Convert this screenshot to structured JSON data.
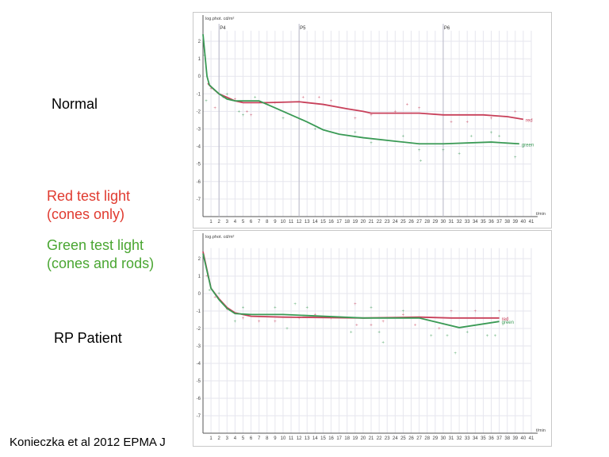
{
  "slide": {
    "label_normal": "Normal",
    "label_red_1": "Red test light",
    "label_red_2": "(cones only)",
    "label_green_1": "Green test light",
    "label_green_2": "(cones and rods)",
    "label_patient": "RP Patient",
    "citation": "Konieczka et al 2012 EPMA J",
    "colors": {
      "red_text": "#e03a2f",
      "green_text": "#4aa632",
      "red_series": "#c8405a",
      "green_series": "#3a9a55"
    }
  },
  "chart_data": [
    {
      "type": "line",
      "ylabel": "log.phot. cd/m²",
      "xlabel": "t/min",
      "xlim": [
        0,
        41
      ],
      "ylim": [
        -8,
        2.6
      ],
      "xticks": [
        1,
        2,
        3,
        4,
        5,
        6,
        7,
        8,
        9,
        10,
        11,
        12,
        13,
        14,
        15,
        16,
        17,
        18,
        19,
        20,
        21,
        22,
        23,
        24,
        25,
        26,
        27,
        28,
        29,
        30,
        31,
        32,
        33,
        34,
        35,
        36,
        37,
        38,
        39,
        40,
        41
      ],
      "yticks": [
        2,
        1,
        0,
        -1,
        -2,
        -3,
        -4,
        -5,
        -6,
        -7
      ],
      "grid": true,
      "markers": [
        {
          "label": "P4",
          "x": 2
        },
        {
          "label": "P5",
          "x": 12
        },
        {
          "label": "P6",
          "x": 30
        }
      ],
      "series": [
        {
          "name": "red",
          "x": [
            0.6,
            1,
            2,
            3,
            4,
            5,
            8,
            12,
            15,
            18,
            20,
            21,
            24,
            27,
            30,
            35,
            38,
            40
          ],
          "y": [
            -0.4,
            -0.6,
            -1.0,
            -1.2,
            -1.4,
            -1.5,
            -1.5,
            -1.45,
            -1.6,
            -1.85,
            -2.0,
            -2.1,
            -2.1,
            -2.1,
            -2.2,
            -2.2,
            -2.3,
            -2.45
          ],
          "points": {
            "x": [
              1,
              1.5,
              2.5,
              4,
              5.5,
              6,
              9,
              12.5,
              14.5,
              16,
              19,
              21,
              24,
              25.5,
              27,
              31,
              33,
              36,
              39
            ],
            "y": [
              -0.7,
              -1.8,
              -1.2,
              -1.3,
              -2.0,
              -2.2,
              -1.5,
              -1.2,
              -1.2,
              -1.4,
              -2.4,
              -2.2,
              -2.0,
              -1.6,
              -1.8,
              -2.6,
              -2.6,
              -2.4,
              -2.0
            ]
          }
        },
        {
          "name": "green",
          "x": [
            0,
            0.5,
            0.8,
            2,
            3,
            4,
            7,
            9,
            11,
            13,
            15,
            17,
            20,
            24,
            27,
            30,
            36,
            39.5
          ],
          "y": [
            2.4,
            0,
            -0.5,
            -1.0,
            -1.3,
            -1.4,
            -1.4,
            -1.8,
            -2.2,
            -2.6,
            -3.05,
            -3.3,
            -3.5,
            -3.7,
            -3.85,
            -3.85,
            -3.75,
            -3.85
          ],
          "points": {
            "x": [
              0.2,
              0.4,
              3,
              4.5,
              5,
              6.5,
              10,
              14,
              19,
              21,
              25,
              27,
              27.2,
              30,
              32,
              33.5,
              36,
              37,
              39
            ],
            "y": [
              1.2,
              -1.4,
              -1.0,
              -2.0,
              -2.2,
              -1.2,
              -2.4,
              -3.0,
              -3.2,
              -3.8,
              -3.4,
              -4.2,
              -4.8,
              -4.2,
              -4.4,
              -3.4,
              -3.2,
              -3.4,
              -4.6
            ]
          }
        }
      ]
    },
    {
      "type": "line",
      "ylabel": "log.phot. cd/m²",
      "xlabel": "t/min",
      "xlim": [
        0,
        41
      ],
      "ylim": [
        -8,
        2.6
      ],
      "xticks": [
        1,
        2,
        3,
        4,
        5,
        6,
        7,
        8,
        9,
        10,
        11,
        12,
        13,
        14,
        15,
        16,
        17,
        18,
        19,
        20,
        21,
        22,
        23,
        24,
        25,
        26,
        27,
        28,
        29,
        30,
        31,
        32,
        33,
        34,
        35,
        36,
        37,
        38,
        39,
        40,
        41
      ],
      "yticks": [
        2,
        1,
        0,
        -1,
        -2,
        -3,
        -4,
        -5,
        -6,
        -7
      ],
      "grid": true,
      "markers": [],
      "series": [
        {
          "name": "red",
          "x": [
            0,
            1,
            2,
            3,
            4,
            6,
            10,
            20,
            27,
            31,
            37
          ],
          "y": [
            2.4,
            0.3,
            -0.3,
            -0.8,
            -1.1,
            -1.3,
            -1.35,
            -1.4,
            -1.35,
            -1.4,
            -1.4
          ],
          "points": {
            "x": [
              0.5,
              1.5,
              3,
              5,
              7,
              9,
              12,
              14,
              16,
              19,
              19.2,
              21,
              22.5,
              25,
              26.5,
              29.5,
              31,
              34,
              37
            ],
            "y": [
              1.0,
              -0.2,
              -0.9,
              -1.4,
              -1.6,
              -1.6,
              -1.4,
              -1.2,
              -1.4,
              -0.6,
              -1.8,
              -1.8,
              -1.6,
              -1.2,
              -1.8,
              -2.0,
              -1.0,
              -1.0,
              -1.0
            ]
          }
        },
        {
          "name": "green",
          "x": [
            0,
            1,
            2,
            3,
            4,
            6,
            10,
            20,
            27,
            32,
            37
          ],
          "y": [
            2.3,
            0.3,
            -0.35,
            -0.85,
            -1.15,
            -1.2,
            -1.2,
            -1.4,
            -1.4,
            -1.95,
            -1.6
          ],
          "points": {
            "x": [
              0.8,
              2,
              4,
              5,
              9,
              10.5,
              11.5,
              13,
              18.5,
              21,
              22,
              22.5,
              25,
              28.5,
              30.5,
              31.5,
              33,
              35.5,
              36.5
            ],
            "y": [
              0.2,
              0,
              -1.6,
              -0.8,
              -0.8,
              -2.0,
              -0.6,
              -0.8,
              -2.2,
              -0.8,
              -2.2,
              -2.8,
              -1.0,
              -2.4,
              -2.4,
              -3.4,
              -2.2,
              -2.4,
              -2.4
            ]
          }
        }
      ]
    }
  ]
}
